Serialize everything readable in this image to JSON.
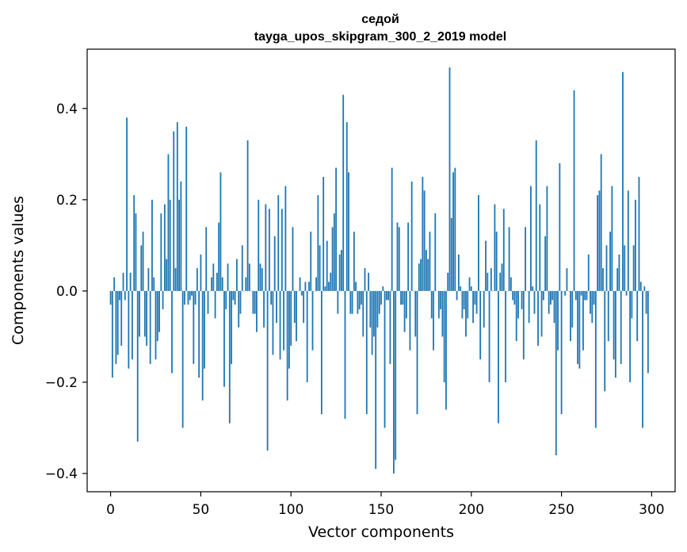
{
  "chart_data": {
    "type": "bar",
    "title": "седой",
    "subtitle": "tayga_upos_skipgram_300_2_2019 model",
    "xlabel": "Vector components",
    "ylabel": "Components values",
    "xlim": [
      -13,
      313
    ],
    "ylim": [
      -0.44,
      0.53
    ],
    "xticks": [
      0,
      50,
      100,
      150,
      200,
      250,
      300
    ],
    "yticks": [
      -0.4,
      -0.2,
      0.0,
      0.2,
      0.4
    ],
    "ytick_labels": [
      "−0.4",
      "−0.2",
      "0.0",
      "0.2",
      "0.4"
    ],
    "grid": false,
    "color": "#1f77b4",
    "x": [
      0,
      1,
      2,
      3,
      4,
      5,
      6,
      7,
      8,
      9,
      10,
      11,
      12,
      13,
      14,
      15,
      16,
      17,
      18,
      19,
      20,
      21,
      22,
      23,
      24,
      25,
      26,
      27,
      28,
      29,
      30,
      31,
      32,
      33,
      34,
      35,
      36,
      37,
      38,
      39,
      40,
      41,
      42,
      43,
      44,
      45,
      46,
      47,
      48,
      49,
      50,
      51,
      52,
      53,
      54,
      55,
      56,
      57,
      58,
      59,
      60,
      61,
      62,
      63,
      64,
      65,
      66,
      67,
      68,
      69,
      70,
      71,
      72,
      73,
      74,
      75,
      76,
      77,
      78,
      79,
      80,
      81,
      82,
      83,
      84,
      85,
      86,
      87,
      88,
      89,
      90,
      91,
      92,
      93,
      94,
      95,
      96,
      97,
      98,
      99,
      100,
      101,
      102,
      103,
      104,
      105,
      106,
      107,
      108,
      109,
      110,
      111,
      112,
      113,
      114,
      115,
      116,
      117,
      118,
      119,
      120,
      121,
      122,
      123,
      124,
      125,
      126,
      127,
      128,
      129,
      130,
      131,
      132,
      133,
      134,
      135,
      136,
      137,
      138,
      139,
      140,
      141,
      142,
      143,
      144,
      145,
      146,
      147,
      148,
      149,
      150,
      151,
      152,
      153,
      154,
      155,
      156,
      157,
      158,
      159,
      160,
      161,
      162,
      163,
      164,
      165,
      166,
      167,
      168,
      169,
      170,
      171,
      172,
      173,
      174,
      175,
      176,
      177,
      178,
      179,
      180,
      181,
      182,
      183,
      184,
      185,
      186,
      187,
      188,
      189,
      190,
      191,
      192,
      193,
      194,
      195,
      196,
      197,
      198,
      199,
      200,
      201,
      202,
      203,
      204,
      205,
      206,
      207,
      208,
      209,
      210,
      211,
      212,
      213,
      214,
      215,
      216,
      217,
      218,
      219,
      220,
      221,
      222,
      223,
      224,
      225,
      226,
      227,
      228,
      229,
      230,
      231,
      232,
      233,
      234,
      235,
      236,
      237,
      238,
      239,
      240,
      241,
      242,
      243,
      244,
      245,
      246,
      247,
      248,
      249,
      250,
      251,
      252,
      253,
      254,
      255,
      256,
      257,
      258,
      259,
      260,
      261,
      262,
      263,
      264,
      265,
      266,
      267,
      268,
      269,
      270,
      271,
      272,
      273,
      274,
      275,
      276,
      277,
      278,
      279,
      280,
      281,
      282,
      283,
      284,
      285,
      286,
      287,
      288,
      289,
      290,
      291,
      292,
      293,
      294,
      295,
      296,
      297,
      298,
      299
    ],
    "values": [
      -0.03,
      -0.19,
      0.03,
      -0.16,
      -0.14,
      -0.02,
      -0.12,
      0.04,
      -0.02,
      0.38,
      -0.17,
      0.04,
      -0.15,
      0.21,
      0.17,
      -0.33,
      -0.1,
      0.1,
      0.13,
      -0.1,
      -0.12,
      0.05,
      -0.16,
      0.2,
      0.03,
      -0.15,
      -0.11,
      -0.09,
      0.17,
      -0.04,
      0.19,
      0.07,
      0.3,
      0.2,
      -0.18,
      0.35,
      0.05,
      0.37,
      0.2,
      0.24,
      -0.3,
      -0.03,
      0.36,
      -0.03,
      -0.02,
      -0.01,
      -0.16,
      -0.03,
      0.05,
      -0.19,
      0.08,
      -0.24,
      -0.17,
      0.14,
      -0.05,
      0.0,
      0.03,
      0.06,
      -0.06,
      0.04,
      0.15,
      0.26,
      0.03,
      -0.21,
      -0.04,
      0.06,
      -0.29,
      -0.16,
      -0.02,
      -0.03,
      0.07,
      -0.08,
      -0.05,
      0.1,
      0.0,
      0.03,
      0.33,
      0.06,
      0.0,
      -0.05,
      -0.05,
      -0.09,
      0.2,
      0.06,
      0.05,
      -0.08,
      0.19,
      -0.35,
      0.18,
      -0.03,
      -0.14,
      0.12,
      -0.07,
      0.21,
      -0.15,
      0.18,
      -0.13,
      0.23,
      -0.24,
      -0.17,
      -0.12,
      0.14,
      -0.07,
      -0.11,
      0.0,
      0.03,
      -0.01,
      -0.07,
      0.02,
      -0.2,
      0.02,
      0.13,
      -0.13,
      0.0,
      0.03,
      0.21,
      0.1,
      -0.27,
      0.25,
      0.01,
      0.11,
      0.02,
      0.04,
      0.14,
      0.17,
      0.27,
      -0.05,
      0.08,
      0.09,
      0.43,
      -0.28,
      0.37,
      0.26,
      -0.05,
      -0.05,
      0.13,
      0.02,
      -0.05,
      -0.04,
      -0.03,
      -0.1,
      0.05,
      -0.27,
      0.04,
      -0.08,
      -0.14,
      -0.1,
      -0.39,
      -0.08,
      -0.05,
      -0.03,
      0.01,
      -0.3,
      -0.02,
      -0.02,
      -0.16,
      0.27,
      -0.4,
      -0.37,
      0.15,
      0.14,
      -0.03,
      -0.03,
      -0.09,
      -0.06,
      0.15,
      -0.13,
      0.24,
      0.0,
      -0.1,
      -0.27,
      0.06,
      0.07,
      0.25,
      0.22,
      0.09,
      0.07,
      0.13,
      -0.06,
      -0.13,
      0.17,
      0.0,
      -0.06,
      -0.04,
      -0.1,
      -0.2,
      -0.26,
      0.04,
      0.49,
      0.16,
      0.26,
      0.27,
      -0.02,
      0.08,
      0.01,
      -0.06,
      -0.04,
      -0.1,
      -0.06,
      0.03,
      0.01,
      -0.07,
      -0.03,
      -0.05,
      0.21,
      -0.15,
      0.0,
      -0.08,
      0.11,
      0.04,
      -0.2,
      0.05,
      0.0,
      0.19,
      0.13,
      -0.29,
      0.04,
      0.06,
      0.18,
      -0.2,
      0.0,
      0.14,
      0.03,
      -0.02,
      -0.03,
      -0.11,
      -0.06,
      0.0,
      -0.04,
      -0.15,
      0.14,
      0.0,
      -0.07,
      0.23,
      0.01,
      -0.05,
      0.33,
      -0.12,
      0.19,
      -0.1,
      -0.02,
      0.12,
      0.23,
      -0.05,
      -0.03,
      -0.02,
      -0.07,
      -0.36,
      -0.13,
      0.28,
      -0.27,
      0.0,
      -0.01,
      0.05,
      0.0,
      -0.11,
      -0.08,
      0.44,
      -0.02,
      -0.16,
      -0.17,
      -0.01,
      -0.13,
      -0.02,
      -0.02,
      0.08,
      -0.05,
      -0.07,
      -0.03,
      -0.3,
      0.21,
      0.22,
      0.3,
      0.05,
      -0.22,
      0.1,
      -0.11,
      0.13,
      0.23,
      -0.15,
      -0.19,
      0.05,
      0.08,
      -0.16,
      0.48,
      0.1,
      -0.01,
      0.22,
      -0.2,
      -0.06,
      0.1,
      0.2,
      -0.11,
      0.25,
      0.02,
      -0.3,
      0.01,
      -0.05,
      -0.18,
      0.0
    ]
  }
}
